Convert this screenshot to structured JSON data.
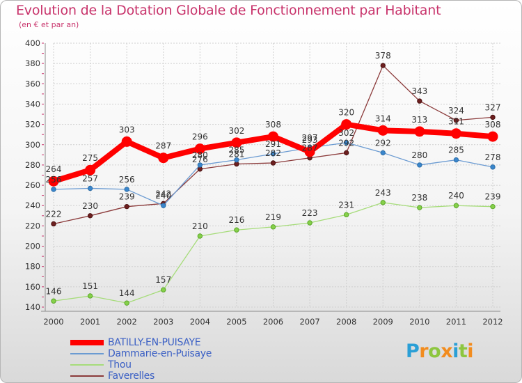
{
  "chart_data": {
    "type": "line",
    "title": "Evolution de la Dotation Globale de Fonctionnement par Habitant",
    "subtitle": "(en € et par an)",
    "xlabel": "",
    "ylabel": "",
    "categories": [
      "2000",
      "2001",
      "2002",
      "2003",
      "2004",
      "2005",
      "2006",
      "2007",
      "2008",
      "2009",
      "2010",
      "2011",
      "2012"
    ],
    "ylim": [
      140,
      400
    ],
    "yticks": [
      140,
      160,
      180,
      200,
      220,
      240,
      260,
      280,
      300,
      320,
      340,
      360,
      380,
      400
    ],
    "grid": true,
    "legend_position": "bottom-left",
    "series": [
      {
        "name": "BATILLY-EN-PUISAYE",
        "color": "#ff0000",
        "values": [
          264,
          275,
          303,
          287,
          296,
          302,
          308,
          293,
          320,
          314,
          313,
          311,
          308
        ],
        "labels": [
          "264",
          "275",
          "303",
          "287",
          "296",
          "302",
          "308",
          "293",
          "320",
          "314",
          "313",
          "311",
          "308"
        ]
      },
      {
        "name": "Dammarie-en-Puisaye",
        "color": "#6b9bd2",
        "values": [
          256,
          257,
          256,
          240,
          280,
          285,
          291,
          297,
          302,
          292,
          280,
          285,
          278
        ],
        "labels": [
          "256",
          "257",
          "256",
          "240",
          "280",
          "285",
          "291",
          "297",
          "302",
          "292",
          "280",
          "285",
          "278"
        ]
      },
      {
        "name": "Thou",
        "color": "#a6dc7a",
        "values": [
          146,
          151,
          144,
          157,
          210,
          216,
          219,
          223,
          231,
          243,
          238,
          240,
          239
        ],
        "labels": [
          "146",
          "151",
          "144",
          "157",
          "210",
          "216",
          "219",
          "223",
          "231",
          "243",
          "238",
          "240",
          "239"
        ]
      },
      {
        "name": "Faverelles",
        "color": "#8b3a3a",
        "values": [
          222,
          230,
          239,
          242,
          276,
          281,
          282,
          287,
          292,
          378,
          343,
          324,
          327
        ],
        "labels": [
          "222",
          "230",
          "239",
          "242",
          "276",
          "281",
          "282",
          "287",
          "292",
          "378",
          "343",
          "324",
          "327"
        ]
      }
    ]
  },
  "logo": {
    "text": "Proxiti",
    "letters": [
      "P",
      "r",
      "o",
      "x",
      "i",
      "t",
      "i"
    ],
    "colors": [
      "#2a9fd6",
      "#f28c1e",
      "#8dc63f",
      "#f28c1e",
      "#2a9fd6",
      "#8dc63f",
      "#f28c1e"
    ]
  }
}
